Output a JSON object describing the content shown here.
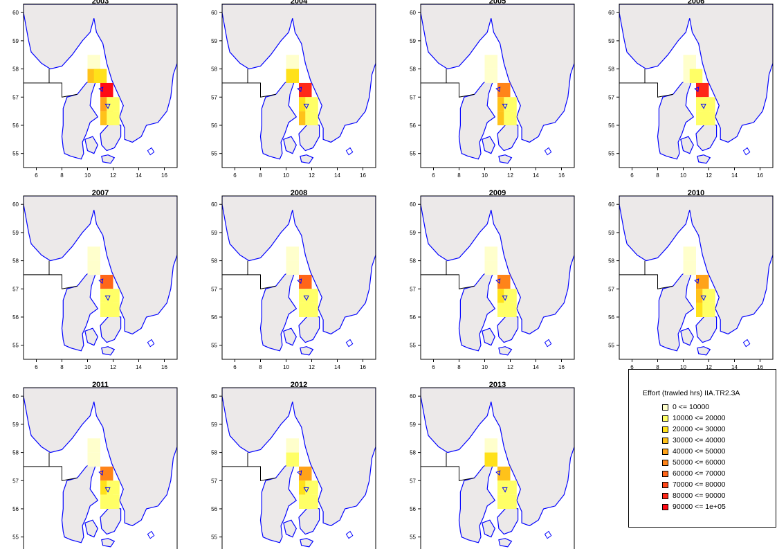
{
  "colors": {
    "land": "#ece9e9",
    "coast": "#0000ff",
    "boundary": "#000000",
    "frame": "#000000",
    "classes": [
      "#ffffcc",
      "#ffff66",
      "#ffe11a",
      "#ffc21a",
      "#ffa31a",
      "#ff8419",
      "#ff6619",
      "#ff4719",
      "#ff2818",
      "#ff0a14"
    ]
  },
  "map": {
    "lon_range": [
      5,
      17
    ],
    "lat_range": [
      54.5,
      60.3
    ],
    "x_ticks": [
      "6",
      "8",
      "10",
      "12",
      "14",
      "16"
    ],
    "y_ticks": [
      "55",
      "56",
      "57",
      "58",
      "59",
      "60"
    ]
  },
  "panels": [
    {
      "title": "2003",
      "cells": [
        {
          "lon": 10,
          "lat": 58,
          "c": 0
        },
        {
          "lon": 10,
          "lat": 57.5,
          "c": 3
        },
        {
          "lon": 10.5,
          "lat": 57.5,
          "c": 2
        },
        {
          "lon": 11,
          "lat": 57,
          "c": 9
        },
        {
          "lon": 11,
          "lat": 56.5,
          "c": 4
        },
        {
          "lon": 11,
          "lat": 56,
          "c": 3
        },
        {
          "lon": 11.5,
          "lat": 56,
          "c": 1
        },
        {
          "lon": 11.5,
          "lat": 56.5,
          "c": 1
        }
      ]
    },
    {
      "title": "2004",
      "cells": [
        {
          "lon": 10,
          "lat": 58,
          "c": 0
        },
        {
          "lon": 10,
          "lat": 57.5,
          "c": 2
        },
        {
          "lon": 11,
          "lat": 57,
          "c": 8
        },
        {
          "lon": 11,
          "lat": 56.5,
          "c": 2
        },
        {
          "lon": 11,
          "lat": 56,
          "c": 3
        },
        {
          "lon": 11.5,
          "lat": 56,
          "c": 1
        },
        {
          "lon": 11.5,
          "lat": 56.5,
          "c": 1
        }
      ]
    },
    {
      "title": "2005",
      "cells": [
        {
          "lon": 10,
          "lat": 58,
          "c": 0
        },
        {
          "lon": 10,
          "lat": 57.5,
          "c": 0
        },
        {
          "lon": 11,
          "lat": 57,
          "c": 5
        },
        {
          "lon": 11,
          "lat": 56.5,
          "c": 3
        },
        {
          "lon": 11,
          "lat": 56,
          "c": 3
        },
        {
          "lon": 11.5,
          "lat": 56,
          "c": 1
        },
        {
          "lon": 11.5,
          "lat": 56.5,
          "c": 1
        }
      ]
    },
    {
      "title": "2006",
      "cells": [
        {
          "lon": 10,
          "lat": 58,
          "c": 0
        },
        {
          "lon": 10,
          "lat": 57.5,
          "c": 0
        },
        {
          "lon": 10.5,
          "lat": 57.5,
          "c": 1
        },
        {
          "lon": 11,
          "lat": 57,
          "c": 8
        },
        {
          "lon": 11,
          "lat": 56.5,
          "c": 1
        },
        {
          "lon": 11,
          "lat": 56,
          "c": 1
        },
        {
          "lon": 11.5,
          "lat": 56,
          "c": 1
        },
        {
          "lon": 11.5,
          "lat": 56.5,
          "c": 1
        }
      ]
    },
    {
      "title": "2007",
      "cells": [
        {
          "lon": 10,
          "lat": 58,
          "c": 0
        },
        {
          "lon": 10,
          "lat": 57.5,
          "c": 0
        },
        {
          "lon": 11,
          "lat": 57,
          "c": 6
        },
        {
          "lon": 11,
          "lat": 56.5,
          "c": 1
        },
        {
          "lon": 11,
          "lat": 56,
          "c": 1
        },
        {
          "lon": 11.5,
          "lat": 56,
          "c": 1
        },
        {
          "lon": 11.5,
          "lat": 56.5,
          "c": 1
        }
      ]
    },
    {
      "title": "2008",
      "cells": [
        {
          "lon": 10,
          "lat": 58,
          "c": 0
        },
        {
          "lon": 10,
          "lat": 57.5,
          "c": 0
        },
        {
          "lon": 11,
          "lat": 57,
          "c": 6
        },
        {
          "lon": 11,
          "lat": 56.5,
          "c": 1
        },
        {
          "lon": 11,
          "lat": 56,
          "c": 1
        },
        {
          "lon": 11.5,
          "lat": 56,
          "c": 1
        },
        {
          "lon": 11.5,
          "lat": 56.5,
          "c": 1
        }
      ]
    },
    {
      "title": "2009",
      "cells": [
        {
          "lon": 10,
          "lat": 58,
          "c": 0
        },
        {
          "lon": 10,
          "lat": 57.5,
          "c": 0
        },
        {
          "lon": 11,
          "lat": 57,
          "c": 5
        },
        {
          "lon": 11,
          "lat": 56.5,
          "c": 2
        },
        {
          "lon": 11,
          "lat": 56,
          "c": 1
        },
        {
          "lon": 11.5,
          "lat": 56,
          "c": 1
        },
        {
          "lon": 11.5,
          "lat": 56.5,
          "c": 1
        }
      ]
    },
    {
      "title": "2010",
      "cells": [
        {
          "lon": 10,
          "lat": 58,
          "c": 0
        },
        {
          "lon": 10,
          "lat": 57.5,
          "c": 0
        },
        {
          "lon": 11,
          "lat": 57,
          "c": 4
        },
        {
          "lon": 11,
          "lat": 56.5,
          "c": 3
        },
        {
          "lon": 11,
          "lat": 56,
          "c": 2
        },
        {
          "lon": 11.5,
          "lat": 56,
          "c": 1
        },
        {
          "lon": 11.5,
          "lat": 56.5,
          "c": 1
        }
      ]
    },
    {
      "title": "2011",
      "cells": [
        {
          "lon": 10,
          "lat": 58,
          "c": 0
        },
        {
          "lon": 10,
          "lat": 57.5,
          "c": 0
        },
        {
          "lon": 11,
          "lat": 57,
          "c": 5
        },
        {
          "lon": 11,
          "lat": 56.5,
          "c": 2
        },
        {
          "lon": 11,
          "lat": 56,
          "c": 1
        },
        {
          "lon": 11.5,
          "lat": 56,
          "c": 1
        },
        {
          "lon": 11.5,
          "lat": 56.5,
          "c": 1
        }
      ]
    },
    {
      "title": "2012",
      "cells": [
        {
          "lon": 10,
          "lat": 58,
          "c": 0
        },
        {
          "lon": 10,
          "lat": 57.5,
          "c": 1
        },
        {
          "lon": 11,
          "lat": 57,
          "c": 4
        },
        {
          "lon": 11,
          "lat": 56.5,
          "c": 2
        },
        {
          "lon": 11,
          "lat": 56,
          "c": 1
        },
        {
          "lon": 11.5,
          "lat": 56,
          "c": 1
        },
        {
          "lon": 11.5,
          "lat": 56.5,
          "c": 1
        }
      ]
    },
    {
      "title": "2013",
      "cells": [
        {
          "lon": 10,
          "lat": 58,
          "c": 0
        },
        {
          "lon": 10,
          "lat": 57.5,
          "c": 2
        },
        {
          "lon": 11,
          "lat": 57,
          "c": 3
        },
        {
          "lon": 11,
          "lat": 56.5,
          "c": 1
        },
        {
          "lon": 11,
          "lat": 56,
          "c": 1
        },
        {
          "lon": 11.5,
          "lat": 56,
          "c": 1
        },
        {
          "lon": 11.5,
          "lat": 56.5,
          "c": 1
        }
      ]
    }
  ],
  "legend": {
    "title": "Effort (trawled hrs) IIA.TR2.3A",
    "items": [
      "0 <= 10000",
      "10000 <= 20000",
      "20000 <= 30000",
      "30000 <= 40000",
      "40000 <= 50000",
      "50000 <= 60000",
      "60000 <= 70000",
      "70000 <= 80000",
      "80000 <= 90000",
      "90000 <= 1e+05"
    ]
  }
}
